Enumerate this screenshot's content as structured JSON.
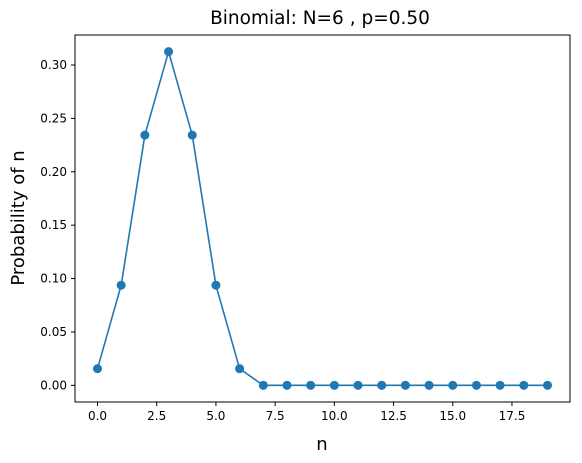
{
  "chart_data": {
    "type": "line",
    "title": "Binomial: N=6 , p=0.50",
    "xlabel": "n",
    "ylabel": "Probability of n",
    "xlim": [
      -0.95,
      19.95
    ],
    "ylim": [
      -0.0156,
      0.3281
    ],
    "grid": false,
    "xticks": [
      0.0,
      2.5,
      5.0,
      7.5,
      10.0,
      12.5,
      15.0,
      17.5
    ],
    "xtick_labels": [
      "0.0",
      "2.5",
      "5.0",
      "7.5",
      "10.0",
      "12.5",
      "15.0",
      "17.5"
    ],
    "yticks": [
      0.0,
      0.05,
      0.1,
      0.15,
      0.2,
      0.25,
      0.3
    ],
    "ytick_labels": [
      "0.00",
      "0.05",
      "0.10",
      "0.15",
      "0.20",
      "0.25",
      "0.30"
    ],
    "series": [
      {
        "color": "#1f77b4",
        "marker": "circle",
        "x": [
          0,
          1,
          2,
          3,
          4,
          5,
          6,
          7,
          8,
          9,
          10,
          11,
          12,
          13,
          14,
          15,
          16,
          17,
          18,
          19
        ],
        "y": [
          0.015625,
          0.09375,
          0.234375,
          0.3125,
          0.234375,
          0.09375,
          0.015625,
          0,
          0,
          0,
          0,
          0,
          0,
          0,
          0,
          0,
          0,
          0,
          0,
          0
        ]
      }
    ]
  }
}
